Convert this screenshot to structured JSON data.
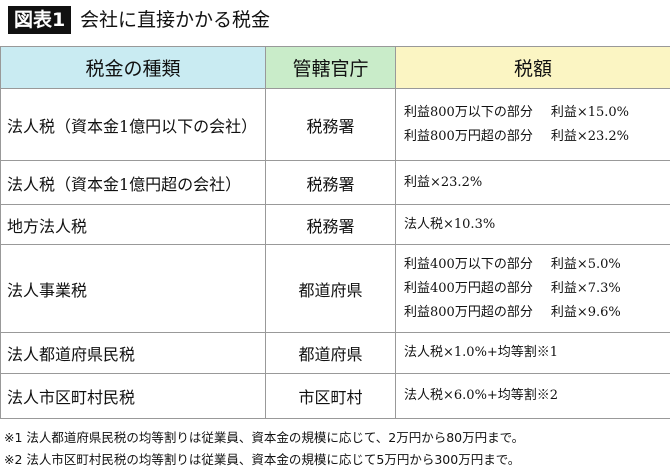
{
  "header": {
    "label": "図表1",
    "title": "会社に直接かかる税金"
  },
  "table": {
    "columns": [
      "税金の種類",
      "管轄官庁",
      "税額"
    ],
    "rows": [
      {
        "name": "法人税（資本金1億円以下の会社）",
        "office": "税務署",
        "tax": [
          [
            "利益800万以下の部分",
            "利益×15.0%"
          ],
          [
            "利益800万円超の部分",
            "利益×23.2%"
          ]
        ]
      },
      {
        "name": "法人税（資本金1億円超の会社）",
        "office": "税務署",
        "tax": [
          [
            "利益×23.2%"
          ]
        ]
      },
      {
        "name": "地方法人税",
        "office": "税務署",
        "tax": [
          [
            "法人税×10.3%"
          ]
        ]
      },
      {
        "name": "法人事業税",
        "office": "都道府県",
        "tax": [
          [
            "利益400万以下の部分",
            "利益×5.0%"
          ],
          [
            "利益400万円超の部分",
            "利益×7.3%"
          ],
          [
            "利益800万円超の部分",
            "利益×9.6%"
          ]
        ]
      },
      {
        "name": "法人都道府県民税",
        "office": "都道府県",
        "tax": [
          [
            "法人税×1.0%+均等割※1"
          ]
        ]
      },
      {
        "name": "法人市区町村民税",
        "office": "市区町村",
        "tax": [
          [
            "法人税×6.0%+均等割※2"
          ]
        ]
      }
    ]
  },
  "notes": [
    "※1 法人都道府県民税の均等割りは従業員、資本金の規模に応じて、2万円から80万円まで。",
    "※2 法人市区町村民税の均等割りは従業員、資本金の規模に応じて5万円から300万円まで。"
  ]
}
